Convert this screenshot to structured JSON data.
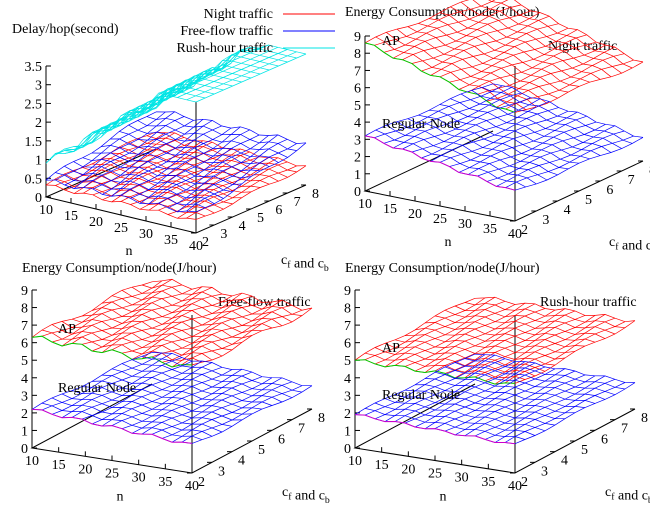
{
  "chart_data": [
    {
      "type": "surface3d",
      "zlabel": "Delay/hop(second)",
      "xlabel": "n",
      "ylabel": "c_f and c_b",
      "xticks": [
        "10",
        "15",
        "20",
        "25",
        "30",
        "35",
        "40"
      ],
      "yticks": [
        "2",
        "3",
        "4",
        "5",
        "6",
        "7",
        "8"
      ],
      "zticks": [
        "0",
        "0.5",
        "1",
        "1.5",
        "2",
        "2.5",
        "3",
        "3.5"
      ],
      "xlim": [
        10,
        40
      ],
      "ylim": [
        2,
        8
      ],
      "zlim": [
        0,
        3.5
      ],
      "legend": [
        {
          "name": "Night traffic",
          "color": "#ff0000"
        },
        {
          "name": "Free-flow traffic",
          "color": "#0000ff"
        },
        {
          "name": "Rush-hour traffic",
          "color": "#00e5e5"
        }
      ],
      "series": [
        {
          "name": "Night traffic",
          "color": "#ff0000",
          "base": 0.32,
          "slope_n": 0.0,
          "slope_c": 0.03,
          "wave": 0.05
        },
        {
          "name": "Free-flow traffic",
          "color": "#0000ff",
          "base": 0.45,
          "slope_n": 0.002,
          "slope_c": 0.1,
          "wave": 0.06
        },
        {
          "name": "Rush-hour traffic",
          "color": "#00e5e5",
          "base": 0.9,
          "slope_n": 0.11,
          "slope_c": 0.05,
          "wave": 0.12,
          "max": 3.5
        }
      ]
    },
    {
      "type": "surface3d",
      "zlabel": "Energy Consumption/node(J/hour)",
      "xlabel": "n",
      "ylabel": "c_f and c_b",
      "panel_label": "Night traffic",
      "xticks": [
        "10",
        "15",
        "20",
        "25",
        "30",
        "35",
        "40"
      ],
      "yticks": [
        "2",
        "3",
        "4",
        "5",
        "6",
        "7",
        "8"
      ],
      "zticks": [
        "0",
        "1",
        "2",
        "3",
        "4",
        "5",
        "6",
        "7",
        "8",
        "9"
      ],
      "xlim": [
        10,
        40
      ],
      "ylim": [
        2,
        8
      ],
      "zlim": [
        0,
        9
      ],
      "series": [
        {
          "name": "AP",
          "label": "AP",
          "color": "#ff0000",
          "edge": "#00cc00",
          "base": 8.6,
          "slope_n": -0.08,
          "slope_c": -0.08,
          "wave": 0.12
        },
        {
          "name": "Regular Node",
          "label": "Regular Node",
          "color": "#0000ff",
          "edge": "#cc00cc",
          "base": 3.2,
          "slope_n": -0.05,
          "slope_c": -0.06,
          "wave": 0.1
        }
      ]
    },
    {
      "type": "surface3d",
      "zlabel": "Energy Consumption/node(J/hour)",
      "xlabel": "n",
      "ylabel": "c_f and c_b",
      "panel_label": "Free-flow traffic",
      "xticks": [
        "10",
        "15",
        "20",
        "25",
        "30",
        "35",
        "40"
      ],
      "yticks": [
        "2",
        "3",
        "4",
        "5",
        "6",
        "7",
        "8"
      ],
      "zticks": [
        "0",
        "1",
        "2",
        "3",
        "4",
        "5",
        "6",
        "7",
        "8",
        "9"
      ],
      "xlim": [
        10,
        40
      ],
      "ylim": [
        2,
        8
      ],
      "zlim": [
        0,
        9
      ],
      "series": [
        {
          "name": "AP",
          "label": "AP",
          "color": "#ff0000",
          "edge": "#00cc00",
          "base": 6.3,
          "slope_n": -0.01,
          "slope_c": -0.05,
          "wave": 0.18
        },
        {
          "name": "Regular Node",
          "label": "Regular Node",
          "color": "#0000ff",
          "edge": "#cc00cc",
          "base": 2.2,
          "slope_n": -0.02,
          "slope_c": -0.05,
          "wave": 0.1
        }
      ]
    },
    {
      "type": "surface3d",
      "zlabel": "Energy Consumption/node(J/hour)",
      "xlabel": "n",
      "ylabel": "c_f and c_b",
      "panel_label": "Rush-hour traffic",
      "xticks": [
        "10",
        "15",
        "20",
        "25",
        "30",
        "35",
        "40"
      ],
      "yticks": [
        "2",
        "3",
        "4",
        "5",
        "6",
        "7",
        "8"
      ],
      "zticks": [
        "0",
        "1",
        "2",
        "3",
        "4",
        "5",
        "6",
        "7",
        "8",
        "9"
      ],
      "xlim": [
        10,
        40
      ],
      "ylim": [
        2,
        8
      ],
      "zlim": [
        0,
        9
      ],
      "series": [
        {
          "name": "AP",
          "label": "AP",
          "color": "#ff0000",
          "edge": "#00cc00",
          "base": 5.0,
          "slope_n": 0.0,
          "slope_c": 0.0,
          "wave": 0.12
        },
        {
          "name": "Regular Node",
          "label": "Regular Node",
          "color": "#0000ff",
          "edge": "#cc00cc",
          "base": 1.9,
          "slope_n": -0.01,
          "slope_c": -0.02,
          "wave": 0.08
        }
      ]
    }
  ]
}
